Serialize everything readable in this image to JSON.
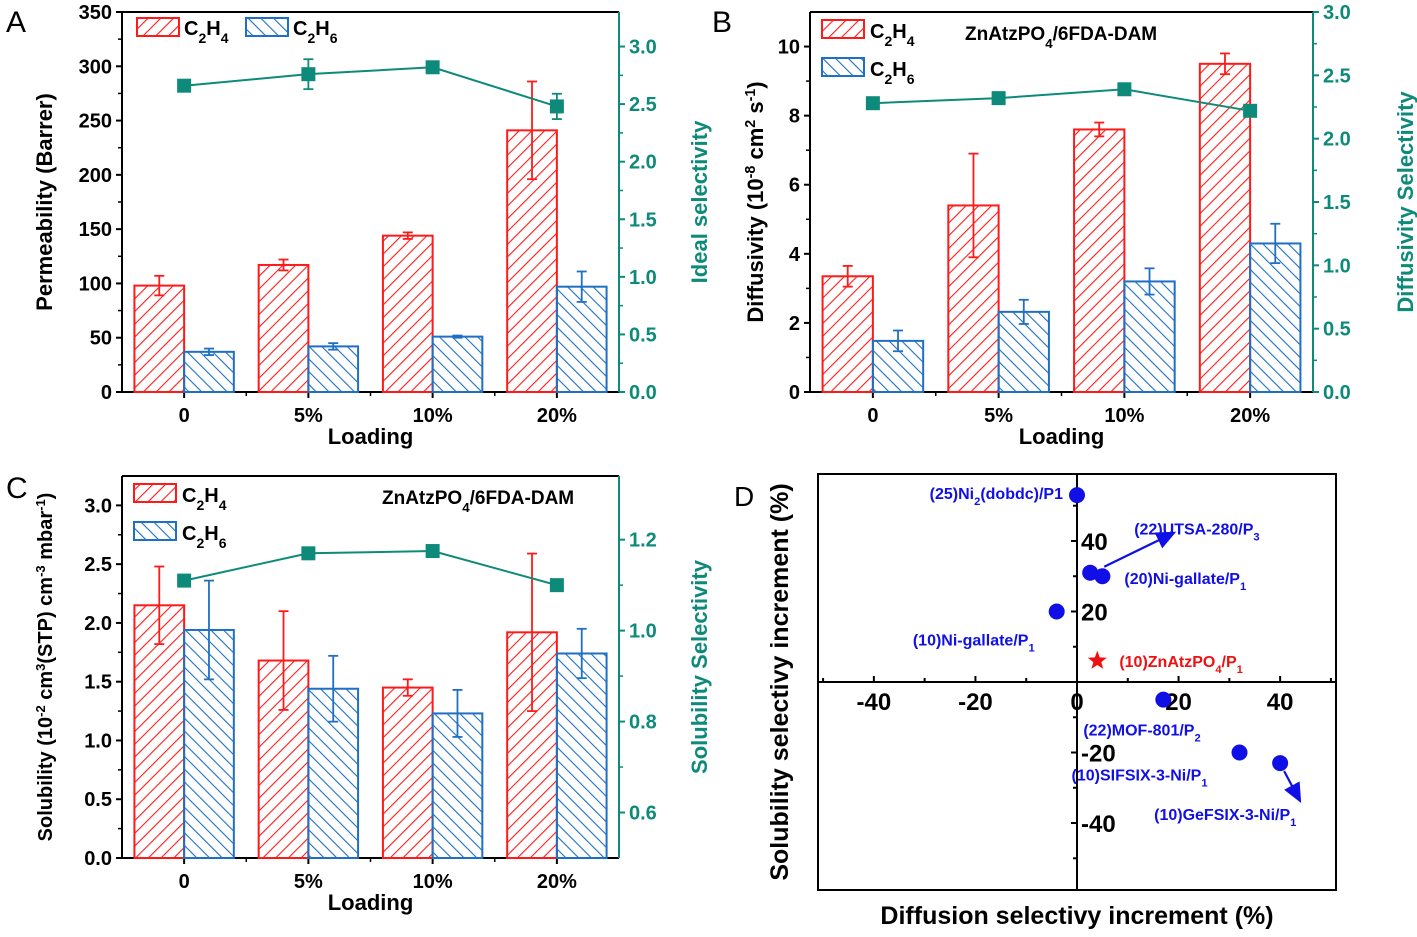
{
  "colors": {
    "c2h4": "#ff1a1a",
    "c2h6": "#1f6fc5",
    "selectivity": "#0e8a7a",
    "scatter": "#1010e6",
    "highlight": "#ee1111",
    "axis": "#000000"
  },
  "chart_data": [
    {
      "panel": "A",
      "type": "bar",
      "categories": [
        "0",
        "5%",
        "10%",
        "20%"
      ],
      "xlabel": "Loading",
      "ylabel": "Permeability (Barrer)",
      "ylim": [
        0,
        350
      ],
      "yticks": [
        "0",
        "50",
        "100",
        "150",
        "200",
        "250",
        "300",
        "350"
      ],
      "y2label": "Ideal selectivity",
      "y2lim": [
        0,
        3.3
      ],
      "y2ticks": [
        "0.0",
        "0.5",
        "1.0",
        "1.5",
        "2.0",
        "2.5",
        "3.0"
      ],
      "annotation": "",
      "legend": [
        "C2H4",
        "C2H6"
      ],
      "series": [
        {
          "name": "C2H4",
          "values": [
            98,
            117,
            144,
            241
          ],
          "errors": [
            9,
            5,
            3,
            45
          ]
        },
        {
          "name": "C2H6",
          "values": [
            37,
            42,
            51,
            97
          ],
          "errors": [
            3,
            3,
            1,
            14
          ]
        }
      ],
      "line": {
        "name": "Ideal selectivity",
        "values": [
          2.66,
          2.76,
          2.82,
          2.48
        ],
        "errors": [
          0.03,
          0.13,
          0.02,
          0.11
        ]
      }
    },
    {
      "panel": "B",
      "type": "bar",
      "categories": [
        "0",
        "5%",
        "10%",
        "20%"
      ],
      "xlabel": "Loading",
      "ylabel": "Diffusivity (10^-8 cm^2 s^-1)",
      "ylim": [
        0,
        11
      ],
      "yticks": [
        "0",
        "2",
        "4",
        "6",
        "8",
        "10"
      ],
      "y2label": "Diffusivity Selectivity",
      "y2lim": [
        0,
        3.0
      ],
      "y2ticks": [
        "0.0",
        "0.5",
        "1.0",
        "1.5",
        "2.0",
        "2.5",
        "3.0"
      ],
      "annotation": "ZnAtzPO4/6FDA-DAM",
      "legend": [
        "C2H4",
        "C2H6"
      ],
      "series": [
        {
          "name": "C2H4",
          "values": [
            3.35,
            5.4,
            7.6,
            9.5
          ],
          "errors": [
            0.3,
            1.5,
            0.2,
            0.3
          ]
        },
        {
          "name": "C2H6",
          "values": [
            1.48,
            2.32,
            3.2,
            4.3
          ],
          "errors": [
            0.3,
            0.35,
            0.38,
            0.57
          ]
        }
      ],
      "line": {
        "name": "Diffusivity Selectivity",
        "values": [
          2.28,
          2.32,
          2.39,
          2.22
        ],
        "errors": [
          0,
          0,
          0,
          0
        ]
      }
    },
    {
      "panel": "C",
      "type": "bar",
      "categories": [
        "0",
        "5%",
        "10%",
        "20%"
      ],
      "xlabel": "Loading",
      "ylabel": "Solubility (10^-2 cm^3(STP) cm^-3 mbar^-1)",
      "ylim": [
        0,
        3.25
      ],
      "yticks": [
        "0.0",
        "0.5",
        "1.0",
        "1.5",
        "2.0",
        "2.5",
        "3.0"
      ],
      "y2label": "Solubility Selectivity",
      "y2lim": [
        0.5,
        1.34
      ],
      "y2ticks": [
        "0.6",
        "0.8",
        "1.0",
        "1.2"
      ],
      "annotation": "ZnAtzPO4/6FDA-DAM",
      "legend": [
        "C2H4",
        "C2H6"
      ],
      "series": [
        {
          "name": "C2H4",
          "values": [
            2.15,
            1.68,
            1.45,
            1.92
          ],
          "errors": [
            0.33,
            0.42,
            0.07,
            0.67
          ]
        },
        {
          "name": "C2H6",
          "values": [
            1.94,
            1.44,
            1.23,
            1.74
          ],
          "errors": [
            0.42,
            0.28,
            0.2,
            0.21
          ]
        }
      ],
      "line": {
        "name": "Solubility Selectivity",
        "values": [
          1.11,
          1.17,
          1.175,
          1.1
        ],
        "errors": [
          0,
          0,
          0,
          0
        ]
      }
    },
    {
      "panel": "D",
      "type": "scatter",
      "xlabel": "Diffusion selectivy increment (%)",
      "ylabel": "Solubility selectivy increment (%)",
      "xlim": [
        -51,
        51
      ],
      "ylim": [
        -59,
        59
      ],
      "xticks": [
        "-40",
        "-20",
        "0",
        "20",
        "40"
      ],
      "yticks": [
        "-40",
        "-20",
        "20",
        "40"
      ],
      "points": [
        {
          "label": "(25)Ni2(dobdc)/P1",
          "x": 0,
          "y": 53,
          "marker": "circle",
          "highlight": false
        },
        {
          "label": "(22)UTSA-280/P3",
          "x": 2.6,
          "y": 31,
          "marker": "circle",
          "highlight": false,
          "arrow": "up-right"
        },
        {
          "label": "(20)Ni-gallate/P1",
          "x": 5,
          "y": 30,
          "marker": "circle",
          "highlight": false
        },
        {
          "label": "(10)Ni-gallate/P1",
          "x": -4,
          "y": 20,
          "marker": "circle",
          "highlight": false
        },
        {
          "label": "(10)ZnAtzPO4/P1",
          "x": 4,
          "y": 6,
          "marker": "star",
          "highlight": true
        },
        {
          "label": "(22)MOF-801/P2",
          "x": 17,
          "y": -5,
          "marker": "circle",
          "highlight": false
        },
        {
          "label": "(10)SIFSIX-3-Ni/P1",
          "x": 32,
          "y": -20,
          "marker": "circle",
          "highlight": false
        },
        {
          "label": "(10)GeFSIX-3-Ni/P1",
          "x": 40,
          "y": -23,
          "marker": "circle",
          "highlight": false,
          "arrow": "down-right"
        }
      ]
    }
  ],
  "panel_letters": [
    "A",
    "B",
    "C",
    "D"
  ]
}
